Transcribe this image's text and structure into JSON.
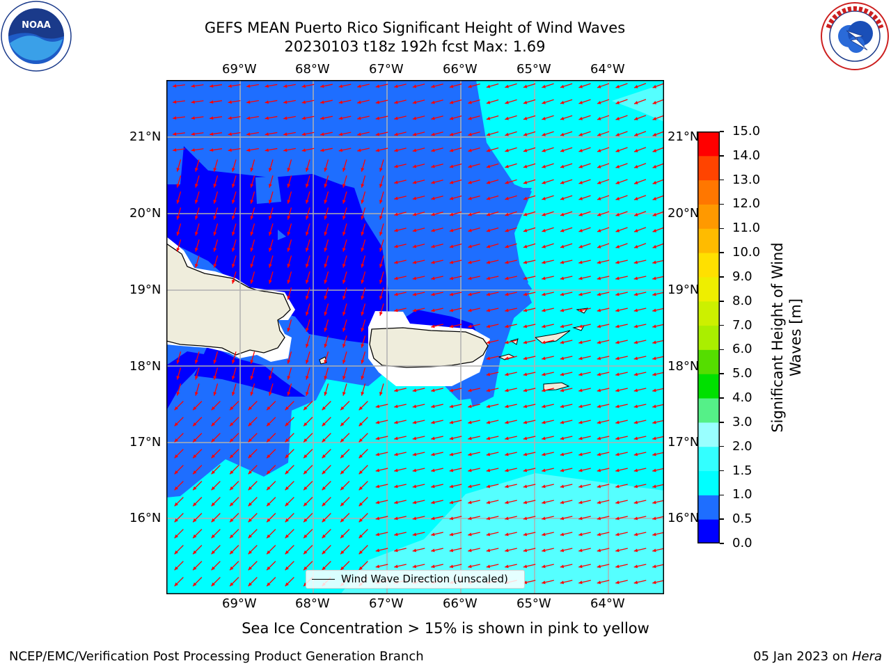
{
  "header": {
    "title_line1": "GEFS MEAN Puerto Rico Significant Height of Wind Waves",
    "title_line2": "20230103 t18z 192h fcst   Max: 1.69"
  },
  "logos": {
    "left": {
      "name": "noaa-logo",
      "text": "NOAA"
    },
    "right": {
      "name": "national-weather-service-logo"
    }
  },
  "map": {
    "lon_labels": [
      "69°W",
      "68°W",
      "67°W",
      "66°W",
      "65°W",
      "64°W"
    ],
    "lat_labels": [
      "21°N",
      "20°N",
      "19°N",
      "18°N",
      "17°N",
      "16°N"
    ],
    "land_color": "#efeddc",
    "arrow_color": "#ff0000",
    "grid_color": "#b0b0b0"
  },
  "legend": {
    "label": "Wind Wave Direction (unscaled)"
  },
  "colorbar": {
    "label_line1": "Significant Height of Wind",
    "label_line2": "Waves [m]",
    "ticks": [
      "15.0",
      "14.0",
      "13.0",
      "12.0",
      "11.0",
      "10.0",
      "9.0",
      "8.0",
      "7.0",
      "6.0",
      "5.0",
      "4.0",
      "3.0",
      "2.0",
      "1.5",
      "1.0",
      "0.5",
      "0.0"
    ],
    "colors_bottom_to_top": [
      "#0000ff",
      "#1e6eff",
      "#00ffff",
      "#33ffff",
      "#99ffff",
      "#55f088",
      "#00e000",
      "#55dd00",
      "#aaee00",
      "#ccf000",
      "#eeee00",
      "#ffe000",
      "#ffbb00",
      "#ff9900",
      "#ff7700",
      "#ff4400",
      "#ff0000"
    ]
  },
  "footer": {
    "sea_ice_note": "Sea Ice Concentration > 15% is shown in pink to yellow",
    "branch": "NCEP/EMC/Verification Post Processing Product Generation Branch",
    "date_prefix": "05 Jan 2023 on ",
    "date_machine": "Hera"
  }
}
